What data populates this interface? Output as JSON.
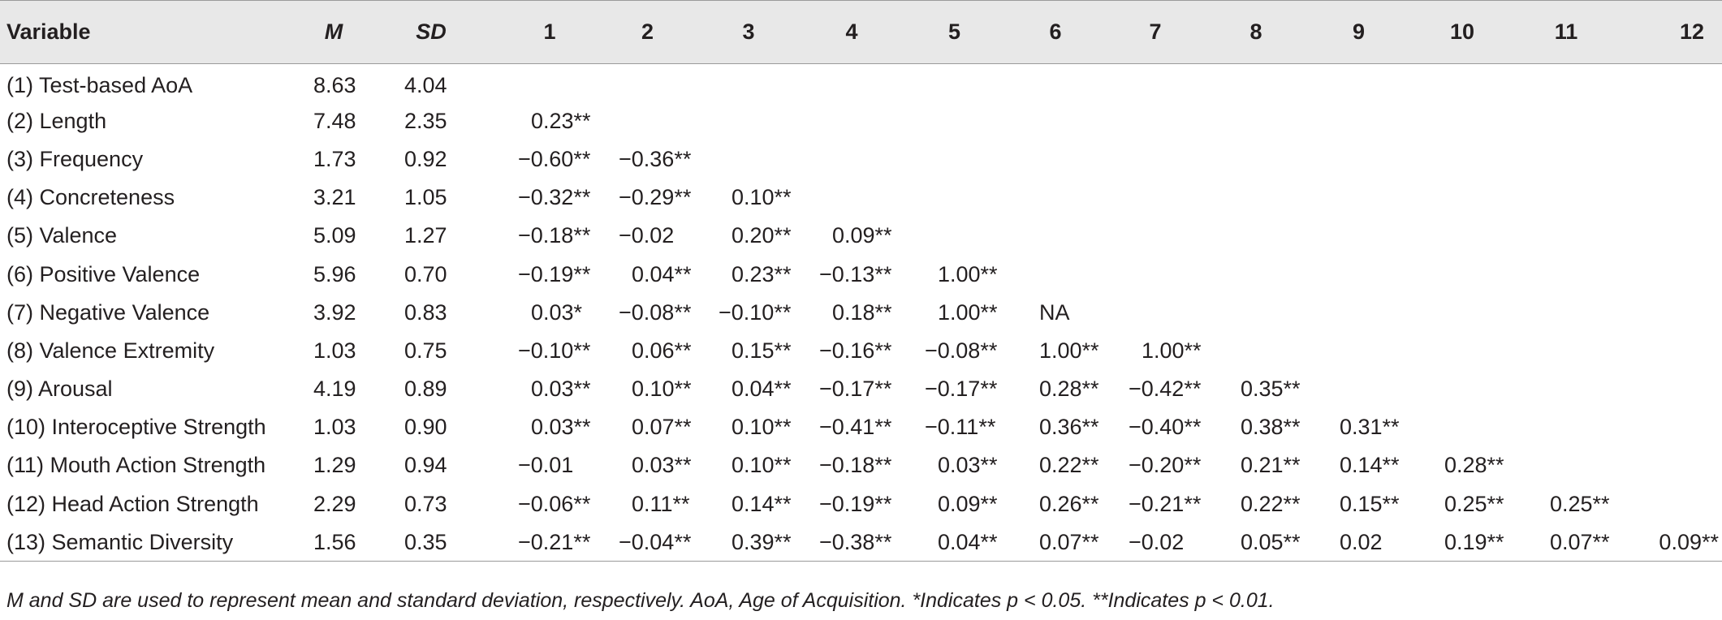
{
  "table": {
    "headers": [
      "Variable",
      "M",
      "SD",
      "1",
      "2",
      "3",
      "4",
      "5",
      "6",
      "7",
      "8",
      "9",
      "10",
      "11",
      "12"
    ],
    "rows": [
      {
        "variable": "(1) Test-based AoA",
        "m": "8.63",
        "sd": "4.04",
        "cells": [
          "",
          "",
          "",
          "",
          "",
          "",
          "",
          "",
          "",
          "",
          "",
          ""
        ]
      },
      {
        "variable": "(2) Length",
        "m": "7.48",
        "sd": "2.35",
        "cells": [
          "0.23**",
          "",
          "",
          "",
          "",
          "",
          "",
          "",
          "",
          "",
          "",
          ""
        ]
      },
      {
        "variable": "(3) Frequency",
        "m": "1.73",
        "sd": "0.92",
        "cells": [
          "−0.60**",
          "−0.36**",
          "",
          "",
          "",
          "",
          "",
          "",
          "",
          "",
          "",
          ""
        ]
      },
      {
        "variable": "(4) Concreteness",
        "m": "3.21",
        "sd": "1.05",
        "cells": [
          "−0.32**",
          "−0.29**",
          "0.10**",
          "",
          "",
          "",
          "",
          "",
          "",
          "",
          "",
          ""
        ]
      },
      {
        "variable": "(5) Valence",
        "m": "5.09",
        "sd": "1.27",
        "cells": [
          "−0.18**",
          "−0.02",
          "0.20**",
          "0.09**",
          "",
          "",
          "",
          "",
          "",
          "",
          "",
          ""
        ]
      },
      {
        "variable": "(6) Positive Valence",
        "m": "5.96",
        "sd": "0.70",
        "cells": [
          "−0.19**",
          "0.04**",
          "0.23**",
          "−0.13**",
          "1.00**",
          "",
          "",
          "",
          "",
          "",
          "",
          ""
        ]
      },
      {
        "variable": "(7) Negative Valence",
        "m": "3.92",
        "sd": "0.83",
        "cells": [
          "0.03*",
          "−0.08**",
          "−0.10**",
          "0.18**",
          "1.00**",
          "NA",
          "",
          "",
          "",
          "",
          "",
          ""
        ]
      },
      {
        "variable": "(8) Valence Extremity",
        "m": "1.03",
        "sd": "0.75",
        "cells": [
          "−0.10**",
          "0.06**",
          "0.15**",
          "−0.16**",
          "−0.08**",
          "1.00**",
          "1.00**",
          "",
          "",
          "",
          "",
          ""
        ]
      },
      {
        "variable": "(9) Arousal",
        "m": "4.19",
        "sd": "0.89",
        "cells": [
          "0.03**",
          "0.10**",
          "0.04**",
          "−0.17**",
          "−0.17**",
          "0.28**",
          "−0.42**",
          "0.35**",
          "",
          "",
          "",
          ""
        ]
      },
      {
        "variable": "(10) Interoceptive Strength",
        "m": "1.03",
        "sd": "0.90",
        "cells": [
          "0.03**",
          "0.07**",
          "0.10**",
          "−0.41**",
          "−0.11**",
          "0.36**",
          "−0.40**",
          "0.38**",
          "0.31**",
          "",
          "",
          ""
        ]
      },
      {
        "variable": "(11) Mouth Action Strength",
        "m": "1.29",
        "sd": "0.94",
        "cells": [
          "−0.01",
          "0.03**",
          "0.10**",
          "−0.18**",
          "0.03**",
          "0.22**",
          "−0.20**",
          "0.21**",
          "0.14**",
          "0.28**",
          "",
          ""
        ]
      },
      {
        "variable": "(12) Head Action Strength",
        "m": "2.29",
        "sd": "0.73",
        "cells": [
          "−0.06**",
          "0.11**",
          "0.14**",
          "−0.19**",
          "0.09**",
          "0.26**",
          "−0.21**",
          "0.22**",
          "0.15**",
          "0.25**",
          "0.25**",
          ""
        ]
      },
      {
        "variable": "(13) Semantic Diversity",
        "m": "1.56",
        "sd": "0.35",
        "cells": [
          "−0.21**",
          "−0.04**",
          "0.39**",
          "−0.38**",
          "0.04**",
          "0.07**",
          "−0.02",
          "0.05**",
          "0.02",
          "0.19**",
          "0.07**",
          "0.09**"
        ]
      }
    ]
  },
  "footnote": "M and SD are used to represent mean and standard deviation, respectively. AoA, Age of Acquisition. *Indicates p < 0.05. **Indicates p < 0.01.",
  "colors": {
    "header_background": "#e8e8e8",
    "text": "#231f20",
    "rule": "#9a9a9a"
  }
}
